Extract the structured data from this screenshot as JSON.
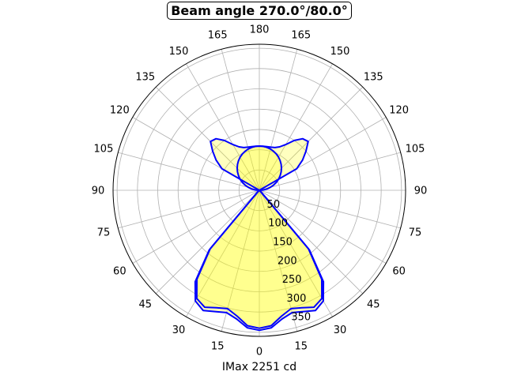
{
  "chart_data": {
    "type": "polar",
    "title": "Beam angle 270.0°/80.0°",
    "xlabel": "IMax 2251 cd",
    "angle_tick_labels": [
      "0",
      "15",
      "30",
      "45",
      "60",
      "75",
      "90",
      "105",
      "120",
      "135",
      "150",
      "165",
      "180"
    ],
    "angle_ticks_deg": [
      0,
      15,
      30,
      45,
      60,
      75,
      90,
      105,
      120,
      135,
      150,
      165,
      180
    ],
    "angle_layout": "0 at bottom, increasing to 180 at top on both left and right sides",
    "radial_ticks": [
      50,
      100,
      150,
      200,
      250,
      300,
      350
    ],
    "radial_tick_labels": [
      "50",
      "100",
      "150",
      "200",
      "250",
      "300",
      "350"
    ],
    "rlim": [
      0,
      360
    ],
    "grid": true,
    "angles_deg": [
      0,
      5,
      10,
      15,
      20,
      25,
      30,
      35,
      40,
      45,
      50,
      55,
      60,
      65,
      70,
      75,
      80,
      85,
      90,
      95,
      100,
      105,
      110,
      115,
      120,
      125,
      130,
      135,
      140,
      145,
      150,
      155,
      160,
      165,
      170,
      175,
      180
    ],
    "series": [
      {
        "values": [
          345,
          340,
          322,
          312,
          318,
          327,
          315,
          275,
          192,
          5,
          0,
          0,
          0,
          0,
          0,
          0,
          0,
          0,
          0,
          0,
          0,
          0,
          0,
          0,
          106,
          130,
          150,
          170,
          166,
          150,
          130,
          118,
          112,
          110,
          109,
          109,
          109
        ],
        "color": "#0000ff",
        "fill": "#ffff00"
      },
      {
        "values": [
          340,
          335,
          315,
          302,
          308,
          318,
          308,
          268,
          188,
          5,
          0,
          0,
          0,
          0,
          0,
          0,
          0,
          0,
          0,
          9.5,
          18.9,
          28.2,
          37.3,
          46.1,
          54.5,
          62.5,
          70.1,
          77.1,
          83.5,
          89.3,
          94.4,
          98.8,
          102.4,
          105.3,
          107.3,
          108.6,
          109
        ],
        "color": "#0000ff",
        "fill": "#ffff00"
      }
    ]
  }
}
